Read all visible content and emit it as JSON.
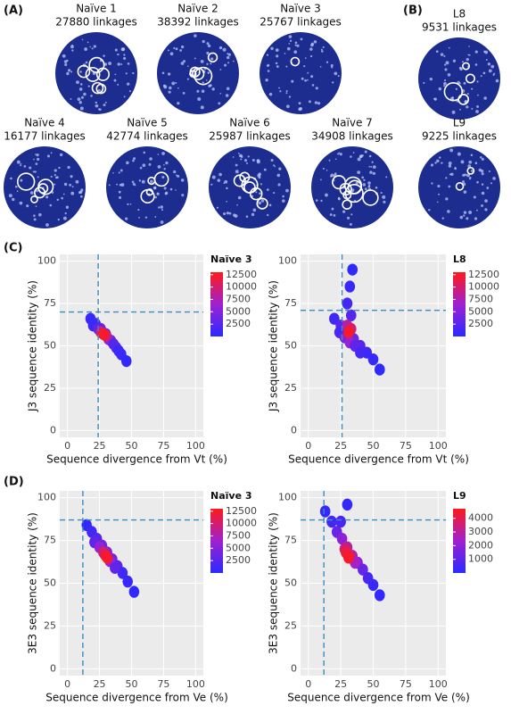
{
  "figure": {
    "panel_labels": {
      "a": "(A)",
      "b": "(B)",
      "c": "(C)",
      "d": "(D)"
    }
  },
  "networks": [
    {
      "name": "Naïve 1",
      "linkages": "27880 linkages"
    },
    {
      "name": "Naïve 2",
      "linkages": "38392 linkages"
    },
    {
      "name": "Naïve 3",
      "linkages": "25767 linkages"
    },
    {
      "name": "Naïve 4",
      "linkages": "16177 linkages"
    },
    {
      "name": "Naïve 5",
      "linkages": "42774 linkages"
    },
    {
      "name": "Naïve 6",
      "linkages": "25987 linkages"
    },
    {
      "name": "Naïve 7",
      "linkages": "34908 linkages"
    }
  ],
  "networks_b": [
    {
      "name": "L8",
      "linkages": "9531 linkages"
    },
    {
      "name": "L9",
      "linkages": "9225 linkages"
    }
  ],
  "chart_data": [
    {
      "type": "density2d",
      "xlabel": "Sequence divergence from Vt (%)",
      "ylabel": "J3 sequence identity (%)",
      "legend_title": "Naïve 3",
      "xlim": [
        -6,
        106
      ],
      "ylim": [
        -4,
        104
      ],
      "xticks": [
        0,
        25,
        50,
        75,
        100
      ],
      "yticks": [
        0,
        25,
        50,
        75,
        100
      ],
      "grid": true,
      "vline": 24,
      "hline": 70,
      "x": [
        18,
        22,
        26,
        30,
        34,
        38,
        42,
        46,
        20,
        24,
        28,
        32,
        36,
        40,
        26,
        30,
        28
      ],
      "y": [
        66,
        63,
        60,
        57,
        53,
        49,
        45,
        41,
        62,
        60,
        57,
        54,
        51,
        47,
        58,
        56,
        57
      ],
      "counts": [
        800,
        1500,
        3000,
        4000,
        3000,
        1500,
        800,
        400,
        1000,
        3000,
        6000,
        5500,
        2500,
        900,
        9000,
        10000,
        12500
      ],
      "clim": [
        0,
        13000
      ],
      "cticks": [
        2500,
        5000,
        7500,
        10000,
        12500
      ],
      "colorscale": [
        "#2a2aff",
        "#a020d0",
        "#ff1a1a"
      ]
    },
    {
      "type": "density2d",
      "xlabel": "Sequence divergence from Vt (%)",
      "ylabel": "J3 sequence identity (%)",
      "legend_title": "L8",
      "xlim": [
        -6,
        106
      ],
      "ylim": [
        -4,
        104
      ],
      "xticks": [
        0,
        25,
        50,
        75,
        100
      ],
      "yticks": [
        0,
        25,
        50,
        75,
        100
      ],
      "grid": true,
      "vline": 26,
      "hline": 71,
      "x": [
        20,
        25,
        30,
        35,
        40,
        45,
        50,
        55,
        30,
        32,
        34,
        33,
        24,
        28,
        32,
        36,
        40,
        30,
        33,
        31
      ],
      "y": [
        66,
        62,
        58,
        54,
        50,
        46,
        42,
        36,
        75,
        85,
        95,
        68,
        58,
        55,
        52,
        50,
        46,
        62,
        60,
        58
      ],
      "counts": [
        1200,
        2500,
        5000,
        4000,
        2500,
        1200,
        600,
        300,
        1500,
        700,
        300,
        2500,
        1500,
        4500,
        6000,
        3000,
        1500,
        8000,
        10000,
        12500
      ],
      "clim": [
        0,
        13000
      ],
      "cticks": [
        2500,
        5000,
        7500,
        10000,
        12500
      ],
      "colorscale": [
        "#2a2aff",
        "#a020d0",
        "#ff1a1a"
      ]
    },
    {
      "type": "density2d",
      "xlabel": "Sequence divergence from Ve (%)",
      "ylabel": "3E3 sequence identity (%)",
      "legend_title": "Naïve 3",
      "xlim": [
        -6,
        106
      ],
      "ylim": [
        -4,
        104
      ],
      "xticks": [
        0,
        25,
        50,
        75,
        100
      ],
      "yticks": [
        0,
        25,
        50,
        75,
        100
      ],
      "grid": true,
      "vline": 12,
      "hline": 87,
      "x": [
        15,
        19,
        23,
        27,
        31,
        35,
        39,
        43,
        47,
        52,
        21,
        25,
        29,
        33,
        37,
        28,
        30,
        31
      ],
      "y": [
        84,
        80,
        76,
        72,
        68,
        64,
        60,
        56,
        51,
        45,
        74,
        71,
        67,
        63,
        59,
        68,
        66,
        65
      ],
      "counts": [
        400,
        1200,
        2500,
        4000,
        5000,
        4000,
        2500,
        1200,
        600,
        200,
        3000,
        6000,
        8000,
        6500,
        3000,
        10000,
        11500,
        12500
      ],
      "clim": [
        0,
        13000
      ],
      "cticks": [
        2500,
        5000,
        7500,
        10000,
        12500
      ],
      "colorscale": [
        "#2a2aff",
        "#a020d0",
        "#ff1a1a"
      ]
    },
    {
      "type": "density2d",
      "xlabel": "Sequence divergence from Ve (%)",
      "ylabel": "3E3 sequence identity (%)",
      "legend_title": "L9",
      "xlim": [
        -6,
        106
      ],
      "ylim": [
        -4,
        104
      ],
      "xticks": [
        0,
        25,
        50,
        75,
        100
      ],
      "yticks": [
        0,
        25,
        50,
        75,
        100
      ],
      "grid": true,
      "vline": 12,
      "hline": 87,
      "x": [
        13,
        18,
        22,
        26,
        30,
        34,
        38,
        42,
        46,
        50,
        55,
        25,
        30,
        28,
        32,
        36,
        29,
        31
      ],
      "y": [
        92,
        86,
        80,
        76,
        71,
        66,
        62,
        58,
        53,
        49,
        43,
        86,
        96,
        70,
        66,
        62,
        68,
        65
      ],
      "counts": [
        200,
        500,
        1200,
        2000,
        3000,
        2800,
        2000,
        1200,
        600,
        300,
        150,
        600,
        200,
        3500,
        3700,
        2500,
        4200,
        4500
      ],
      "clim": [
        0,
        4700
      ],
      "cticks": [
        1000,
        2000,
        3000,
        4000
      ],
      "colorscale": [
        "#2a2aff",
        "#a020d0",
        "#ff1a1a"
      ]
    }
  ]
}
